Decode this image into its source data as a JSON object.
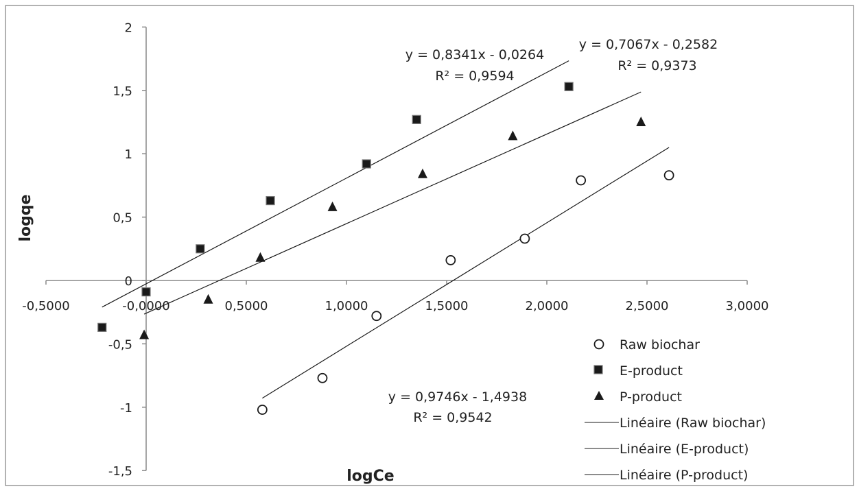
{
  "chart_data": {
    "type": "scatter",
    "xlabel": "logCe",
    "ylabel": "logqe",
    "xlim": [
      -0.5,
      3.0
    ],
    "ylim": [
      -1.5,
      2.0
    ],
    "x_ticks": [
      "-0,5000",
      "-0,0000",
      "0,5000",
      "1,0000",
      "1,5000",
      "2,0000",
      "2,5000",
      "3,0000"
    ],
    "x_tick_values": [
      -0.5,
      0,
      0.5,
      1.0,
      1.5,
      2.0,
      2.5,
      3.0
    ],
    "y_ticks": [
      "2",
      "1,5",
      "1",
      "0,5",
      "0",
      "-0,5",
      "-1",
      "-1,5"
    ],
    "y_tick_values": [
      2,
      1.5,
      1,
      0.5,
      0,
      -0.5,
      -1,
      -1.5
    ],
    "series": [
      {
        "name": "Raw biochar",
        "marker": "circle",
        "x": [
          0.58,
          0.88,
          1.15,
          1.52,
          1.89,
          2.17,
          2.61
        ],
        "y": [
          -1.02,
          -0.77,
          -0.28,
          0.16,
          0.33,
          0.79,
          0.83
        ]
      },
      {
        "name": "E-product",
        "marker": "square",
        "x": [
          -0.22,
          0.0,
          0.27,
          0.62,
          1.1,
          1.35,
          2.11
        ],
        "y": [
          -0.37,
          -0.09,
          0.25,
          0.63,
          0.92,
          1.27,
          1.53
        ]
      },
      {
        "name": "P-product",
        "marker": "triangle",
        "x": [
          -0.01,
          0.31,
          0.57,
          0.93,
          1.38,
          1.83,
          2.47
        ],
        "y": [
          -0.43,
          -0.15,
          0.18,
          0.58,
          0.84,
          1.14,
          1.25
        ]
      }
    ],
    "trendlines": [
      {
        "name": "Linéaire (Raw biochar)",
        "slope": 0.9746,
        "intercept": -1.4938,
        "x_range": [
          0.58,
          2.61
        ],
        "equation": "y = 0,9746x - 1,4938",
        "r2": "R² = 0,9542"
      },
      {
        "name": "Linéaire (E-product)",
        "slope": 0.8341,
        "intercept": -0.0264,
        "x_range": [
          -0.22,
          2.11
        ],
        "equation": "y = 0,8341x - 0,0264",
        "r2": "R² = 0,9594"
      },
      {
        "name": "Linéaire (P-product)",
        "slope": 0.7067,
        "intercept": -0.2582,
        "x_range": [
          -0.01,
          2.47
        ],
        "equation": "y = 0,7067x - 0,2582",
        "r2": "R² = 0,9373"
      }
    ],
    "legend_position": "bottom-right",
    "grid": false
  },
  "colors": {
    "marker": "#1a1a1a",
    "line": "#1a1a1a",
    "axis": "#888888",
    "frame": "#999999"
  }
}
